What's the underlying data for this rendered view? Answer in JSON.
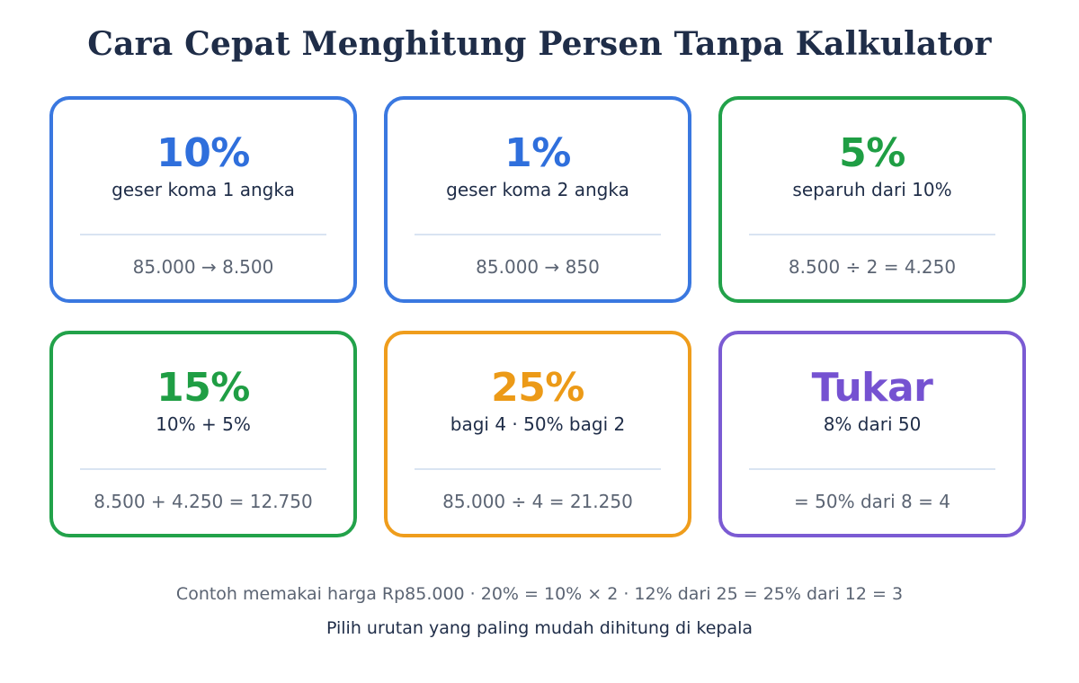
{
  "title": "Cara Cepat Menghitung Persen Tanpa Kalkulator",
  "cards": [
    {
      "percent": "10%",
      "rule": "geser koma 1 angka",
      "example": "85.000 → 8.500",
      "color": "#2f6fdc"
    },
    {
      "percent": "1%",
      "rule": "geser koma 2 angka",
      "example": "85.000 → 850",
      "color": "#2f6fdc"
    },
    {
      "percent": "5%",
      "rule": "separuh dari 10%",
      "example": "8.500 ÷ 2 = 4.250",
      "color": "#1f9e44"
    },
    {
      "percent": "15%",
      "rule": "10% + 5%",
      "example": "8.500 + 4.250 = 12.750",
      "color": "#1f9e44"
    },
    {
      "percent": "25%",
      "rule": "bagi 4 · 50% bagi 2",
      "example": "85.000 ÷ 4 = 21.250",
      "color": "#ec9a17"
    },
    {
      "percent": "Tukar",
      "rule": "8% dari 50",
      "example": "= 50% dari 8 = 4",
      "color": "#7552d1"
    }
  ],
  "footer": {
    "note": "Contoh memakai harga Rp85.000 · 20% = 10% × 2 · 12% dari 25 = 25% dari 12 = 3",
    "tip": "Pilih urutan yang paling mudah dihitung di kepala"
  }
}
